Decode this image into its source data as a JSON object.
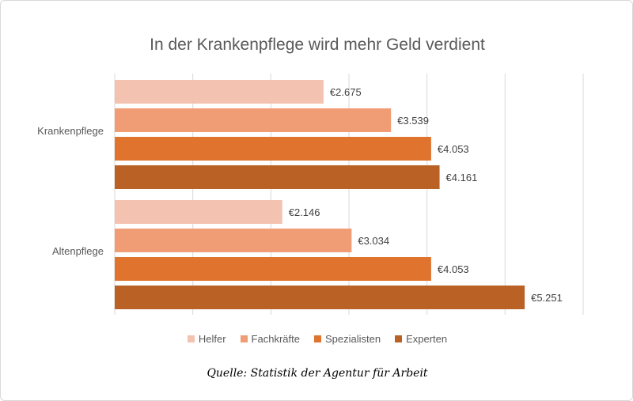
{
  "chart_data": {
    "type": "bar",
    "orientation": "horizontal",
    "title": "In der Krankenpflege wird mehr Geld verdient",
    "categories": [
      "Krankenpflege",
      "Altenpflege"
    ],
    "series": [
      {
        "name": "Helfer",
        "color": "#F4C2B0",
        "values": [
          2675,
          2146
        ],
        "labels": [
          "€2.675",
          "€2.146"
        ]
      },
      {
        "name": "Fachkräfte",
        "color": "#F09C74",
        "values": [
          3539,
          3034
        ],
        "labels": [
          "€3.539",
          "€3.034"
        ]
      },
      {
        "name": "Spezialisten",
        "color": "#E0742E",
        "values": [
          4053,
          4053
        ],
        "labels": [
          "€4.053",
          "€4.053"
        ]
      },
      {
        "name": "Experten",
        "color": "#BA6125",
        "values": [
          4161,
          5251
        ],
        "labels": [
          "€4.161",
          "€5.251"
        ]
      }
    ],
    "xlim": [
      0,
      6000
    ],
    "grid": true,
    "legend_position": "bottom",
    "source": "Quelle: Statistik der Agentur für Arbeit"
  }
}
